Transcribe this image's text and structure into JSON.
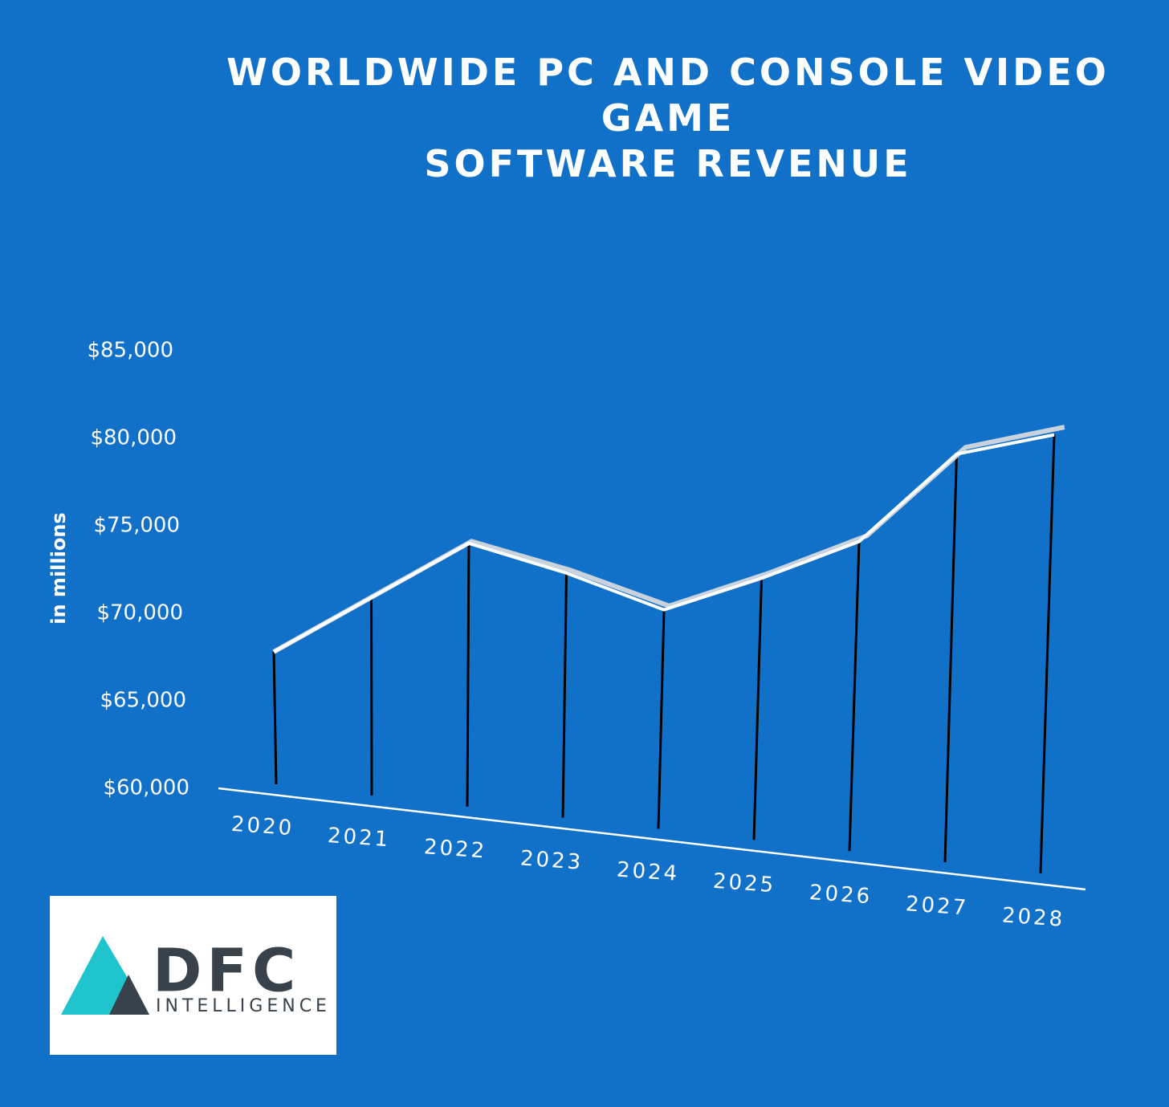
{
  "chart_data": {
    "type": "line",
    "title": "WORLDWIDE PC AND CONSOLE VIDEO\nGAME\nSOFTWARE REVENUE",
    "ylabel": "in millions",
    "categories": [
      "2020",
      "2021",
      "2022",
      "2023",
      "2024",
      "2025",
      "2026",
      "2027",
      "2028"
    ],
    "series": [
      {
        "name": "Revenue",
        "color": "#ffffff",
        "values": [
          67800,
          70900,
          74000,
          72300,
          70200,
          72000,
          74100,
          79100,
          80200
        ]
      }
    ],
    "ylim": [
      60000,
      85000
    ],
    "yticks": [
      {
        "value": 60000,
        "label": "$60,000"
      },
      {
        "value": 65000,
        "label": "$65,000"
      },
      {
        "value": 70000,
        "label": "$70,000"
      },
      {
        "value": 75000,
        "label": "$75,000"
      },
      {
        "value": 80000,
        "label": "$80,000"
      },
      {
        "value": 85000,
        "label": "$85,000"
      }
    ],
    "grid": false
  },
  "logo": {
    "name": "DFC",
    "tagline": "INTELLIGENCE"
  }
}
